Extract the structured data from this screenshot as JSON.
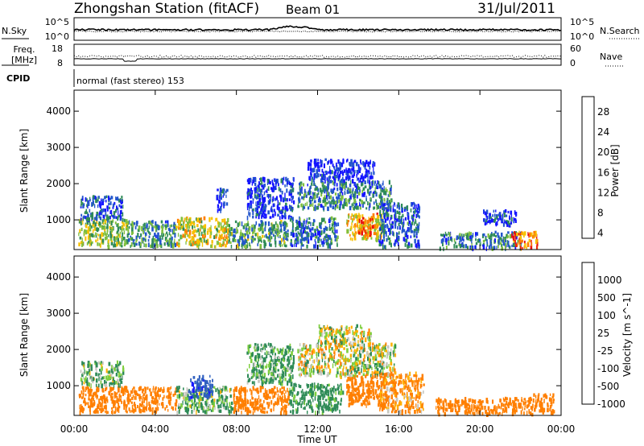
{
  "header": {
    "title": "Zhongshan Station (fitACF)",
    "beam": "Beam 01",
    "date": "31/Jul/2011"
  },
  "top_panels": {
    "sky": {
      "left_label": "N.Sky",
      "right_label": "N.Search",
      "left_ticks": [
        "10^5",
        "10^0"
      ],
      "right_ticks": [
        "10^5",
        "10^0"
      ]
    },
    "freq": {
      "left_label_top": "Freq.",
      "left_label_bottom": "[MHz]",
      "right_label": "Nave",
      "left_ticks": [
        "18",
        "8"
      ],
      "right_ticks": [
        "60",
        "0"
      ]
    },
    "cpid": {
      "label": "CPID",
      "text": "normal (fast stereo) 153"
    }
  },
  "x_axis": {
    "label": "Time UT",
    "ticks": [
      "00:00",
      "04:00",
      "08:00",
      "12:00",
      "16:00",
      "20:00",
      "00:00"
    ]
  },
  "colors": {
    "power_scale": [
      "#1414ff",
      "#2255cc",
      "#2e8b57",
      "#7fbf3f",
      "#f7c000",
      "#ff7f00",
      "#e81010"
    ],
    "velocity_scale": [
      "#1a1aff",
      "#2e5fbf",
      "#2e8b57",
      "#7fcf3f",
      "#c8c8c0",
      "#ffb000",
      "#ff7f00",
      "#e81010"
    ]
  },
  "chart_data": [
    {
      "type": "heatmap",
      "ylabel": "Slant Range [km]",
      "ylim": [
        180,
        4580
      ],
      "yticks": [
        1000,
        2000,
        3000,
        4000
      ],
      "xlim": [
        0,
        24
      ],
      "colorbar_label": "Power [dB]",
      "colorbar_ticks": [
        "28",
        "24",
        "20",
        "16",
        "12",
        "8",
        "4"
      ],
      "clusters": [
        {
          "t": [
            0.2,
            2.6
          ],
          "r": [
            300,
            1050
          ],
          "v": 17
        },
        {
          "t": [
            0.3,
            2.4
          ],
          "r": [
            1050,
            1700
          ],
          "v": 8
        },
        {
          "t": [
            2.6,
            5.0
          ],
          "r": [
            300,
            1000
          ],
          "v": 12
        },
        {
          "t": [
            5.0,
            7.6
          ],
          "r": [
            300,
            1100
          ],
          "v": 20
        },
        {
          "t": [
            7.0,
            7.5
          ],
          "r": [
            1300,
            1900
          ],
          "v": 6
        },
        {
          "t": [
            7.6,
            10.5
          ],
          "r": [
            300,
            1000
          ],
          "v": 14
        },
        {
          "t": [
            8.5,
            10.8
          ],
          "r": [
            1100,
            2200
          ],
          "v": 6
        },
        {
          "t": [
            10.6,
            13.0
          ],
          "r": [
            300,
            1100
          ],
          "v": 10
        },
        {
          "t": [
            11.0,
            15.6
          ],
          "r": [
            1350,
            2100
          ],
          "v": 11
        },
        {
          "t": [
            11.5,
            14.8
          ],
          "r": [
            2100,
            2700
          ],
          "v": 5
        },
        {
          "t": [
            13.4,
            15.2
          ],
          "r": [
            500,
            1200
          ],
          "v": 22
        },
        {
          "t": [
            14.0,
            14.8
          ],
          "r": [
            600,
            1100
          ],
          "v": 27
        },
        {
          "t": [
            15.0,
            17.0
          ],
          "r": [
            300,
            1500
          ],
          "v": 9
        },
        {
          "t": [
            18.0,
            22.0
          ],
          "r": [
            250,
            700
          ],
          "v": 11
        },
        {
          "t": [
            21.5,
            22.8
          ],
          "r": [
            250,
            700
          ],
          "v": 27
        },
        {
          "t": [
            20.0,
            21.8
          ],
          "r": [
            900,
            1300
          ],
          "v": 6
        }
      ]
    },
    {
      "type": "heatmap",
      "ylabel": "Slant Range [km]",
      "ylim": [
        180,
        4580
      ],
      "yticks": [
        1000,
        2000,
        3000,
        4000
      ],
      "xlim": [
        0,
        24
      ],
      "colorbar_label": "Velocity [m s^-1]",
      "colorbar_ticks": [
        "1000",
        "500",
        "100",
        "25",
        "-25",
        "-100",
        "-500",
        "-1000"
      ],
      "clusters": [
        {
          "t": [
            0.2,
            5.0
          ],
          "r": [
            300,
            1000
          ],
          "v": -250
        },
        {
          "t": [
            0.3,
            2.4
          ],
          "r": [
            1050,
            1700
          ],
          "v": 100
        },
        {
          "t": [
            5.0,
            7.8
          ],
          "r": [
            300,
            1000
          ],
          "v": 100
        },
        {
          "t": [
            5.6,
            6.8
          ],
          "r": [
            700,
            1300
          ],
          "v": 900
        },
        {
          "t": [
            7.8,
            10.6
          ],
          "r": [
            300,
            1000
          ],
          "v": -250
        },
        {
          "t": [
            8.5,
            10.8
          ],
          "r": [
            1100,
            2200
          ],
          "v": 150
        },
        {
          "t": [
            10.6,
            13.2
          ],
          "r": [
            300,
            1100
          ],
          "v": 200
        },
        {
          "t": [
            11.0,
            15.8
          ],
          "r": [
            1300,
            2200
          ],
          "v": 0
        },
        {
          "t": [
            12.0,
            14.6
          ],
          "r": [
            2200,
            2700
          ],
          "v": 0
        },
        {
          "t": [
            13.4,
            15.4
          ],
          "r": [
            500,
            1300
          ],
          "v": -250
        },
        {
          "t": [
            15.0,
            17.2
          ],
          "r": [
            300,
            1400
          ],
          "v": -150
        },
        {
          "t": [
            17.8,
            22.6
          ],
          "r": [
            250,
            700
          ],
          "v": -250
        },
        {
          "t": [
            22.6,
            23.6
          ],
          "r": [
            300,
            800
          ],
          "v": -250
        }
      ]
    }
  ]
}
